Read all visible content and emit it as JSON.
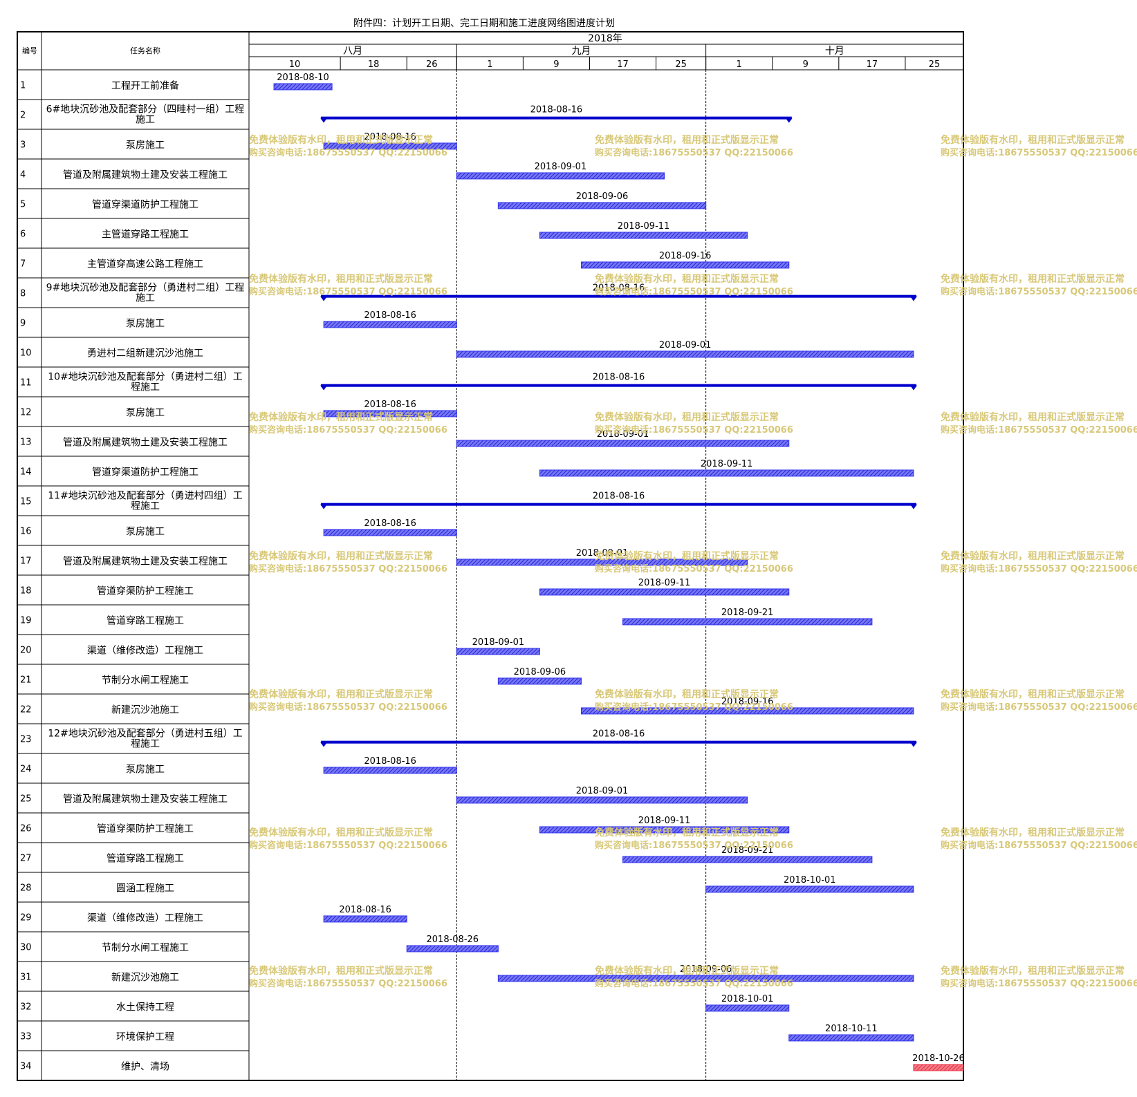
{
  "page": {
    "title": "附件四：计划开工日期、完工日期和施工进度网络图进度计划",
    "col_id": "编号",
    "col_name": "任务名称",
    "year": "2018年",
    "months": [
      {
        "label": "八月",
        "start": "2018-08-07"
      },
      {
        "label": "九月",
        "start": "2018-09-01"
      },
      {
        "label": "十月",
        "start": "2018-10-01"
      }
    ],
    "day_ticks": [
      {
        "label": "10",
        "date": "2018-08-10"
      },
      {
        "label": "18",
        "date": "2018-08-18"
      },
      {
        "label": "26",
        "date": "2018-08-26"
      },
      {
        "label": "1",
        "date": "2018-09-01"
      },
      {
        "label": "9",
        "date": "2018-09-09"
      },
      {
        "label": "17",
        "date": "2018-09-17"
      },
      {
        "label": "25",
        "date": "2018-09-25"
      },
      {
        "label": "1",
        "date": "2018-10-01"
      },
      {
        "label": "9",
        "date": "2018-10-09"
      },
      {
        "label": "17",
        "date": "2018-10-17"
      },
      {
        "label": "25",
        "date": "2018-10-25"
      }
    ],
    "watermark": [
      "免费体验版有水印，租用和正式版显示正常",
      "购买咨询电话:18675550537 QQ:22150066"
    ]
  },
  "chart_data": {
    "type": "gantt",
    "x_range": [
      "2018-08-07",
      "2018-10-31"
    ],
    "colors": {
      "bar": "#3333ee",
      "summary": "#0000cc",
      "last_bar": "#ee3344"
    },
    "tasks": [
      {
        "id": "1",
        "name": "工程开工前准备",
        "start": "2018-08-10",
        "end": "2018-08-16",
        "type": "task"
      },
      {
        "id": "2",
        "name": "6#地块沉砂池及配套部分（四畦村一组）工程施工",
        "start": "2018-08-16",
        "end": "2018-10-10",
        "type": "summary"
      },
      {
        "id": "3",
        "name": "泵房施工",
        "start": "2018-08-16",
        "end": "2018-08-31",
        "type": "task"
      },
      {
        "id": "4",
        "name": "管道及附属建筑物土建及安装工程施工",
        "start": "2018-09-01",
        "end": "2018-09-25",
        "type": "task"
      },
      {
        "id": "5",
        "name": "管道穿渠道防护工程施工",
        "start": "2018-09-06",
        "end": "2018-09-30",
        "type": "task"
      },
      {
        "id": "6",
        "name": "主管道穿路工程施工",
        "start": "2018-09-11",
        "end": "2018-10-05",
        "type": "task"
      },
      {
        "id": "7",
        "name": "主管道穿高速公路工程施工",
        "start": "2018-09-16",
        "end": "2018-10-10",
        "type": "task"
      },
      {
        "id": "8",
        "name": "9#地块沉砂池及配套部分（勇进村二组）工程施工",
        "start": "2018-08-16",
        "end": "2018-10-25",
        "type": "summary"
      },
      {
        "id": "9",
        "name": "泵房施工",
        "start": "2018-08-16",
        "end": "2018-08-31",
        "type": "task"
      },
      {
        "id": "10",
        "name": "勇进村二组新建沉沙池施工",
        "start": "2018-09-01",
        "end": "2018-10-25",
        "type": "task"
      },
      {
        "id": "11",
        "name": "10#地块沉砂池及配套部分（勇进村二组）工程施工",
        "start": "2018-08-16",
        "end": "2018-10-25",
        "type": "summary"
      },
      {
        "id": "12",
        "name": "泵房施工",
        "start": "2018-08-16",
        "end": "2018-08-31",
        "type": "task"
      },
      {
        "id": "13",
        "name": "管道及附属建筑物土建及安装工程施工",
        "start": "2018-09-01",
        "end": "2018-10-10",
        "type": "task"
      },
      {
        "id": "14",
        "name": "管道穿渠道防护工程施工",
        "start": "2018-09-11",
        "end": "2018-10-25",
        "type": "task"
      },
      {
        "id": "15",
        "name": "11#地块沉砂池及配套部分（勇进村四组）工程施工",
        "start": "2018-08-16",
        "end": "2018-10-25",
        "type": "summary"
      },
      {
        "id": "16",
        "name": "泵房施工",
        "start": "2018-08-16",
        "end": "2018-08-31",
        "type": "task"
      },
      {
        "id": "17",
        "name": "管道及附属建筑物土建及安装工程施工",
        "start": "2018-09-01",
        "end": "2018-10-05",
        "type": "task"
      },
      {
        "id": "18",
        "name": "管道穿渠防护工程施工",
        "start": "2018-09-11",
        "end": "2018-10-10",
        "type": "task"
      },
      {
        "id": "19",
        "name": "管道穿路工程施工",
        "start": "2018-09-21",
        "end": "2018-10-20",
        "type": "task"
      },
      {
        "id": "20",
        "name": "渠道（维修改造）工程施工",
        "start": "2018-09-01",
        "end": "2018-09-10",
        "type": "task"
      },
      {
        "id": "21",
        "name": "节制分水闸工程施工",
        "start": "2018-09-06",
        "end": "2018-09-15",
        "type": "task"
      },
      {
        "id": "22",
        "name": "新建沉沙池施工",
        "start": "2018-09-16",
        "end": "2018-10-25",
        "type": "task"
      },
      {
        "id": "23",
        "name": "12#地块沉砂池及配套部分（勇进村五组）工程施工",
        "start": "2018-08-16",
        "end": "2018-10-25",
        "type": "summary"
      },
      {
        "id": "24",
        "name": "泵房施工",
        "start": "2018-08-16",
        "end": "2018-08-31",
        "type": "task"
      },
      {
        "id": "25",
        "name": "管道及附属建筑物土建及安装工程施工",
        "start": "2018-09-01",
        "end": "2018-10-05",
        "type": "task"
      },
      {
        "id": "26",
        "name": "管道穿渠防护工程施工",
        "start": "2018-09-11",
        "end": "2018-10-10",
        "type": "task"
      },
      {
        "id": "27",
        "name": "管道穿路工程施工",
        "start": "2018-09-21",
        "end": "2018-10-20",
        "type": "task"
      },
      {
        "id": "28",
        "name": "圆涵工程施工",
        "start": "2018-10-01",
        "end": "2018-10-25",
        "type": "task"
      },
      {
        "id": "29",
        "name": "渠道（维修改造）工程施工",
        "start": "2018-08-16",
        "end": "2018-08-25",
        "type": "task"
      },
      {
        "id": "30",
        "name": "节制分水闸工程施工",
        "start": "2018-08-26",
        "end": "2018-09-05",
        "type": "task"
      },
      {
        "id": "31",
        "name": "新建沉沙池施工",
        "start": "2018-09-06",
        "end": "2018-10-25",
        "type": "task"
      },
      {
        "id": "32",
        "name": "水土保持工程",
        "start": "2018-10-01",
        "end": "2018-10-10",
        "type": "task"
      },
      {
        "id": "33",
        "name": "环境保护工程",
        "start": "2018-10-11",
        "end": "2018-10-25",
        "type": "task"
      },
      {
        "id": "34",
        "name": "维护、清场",
        "start": "2018-10-26",
        "end": "2018-10-31",
        "type": "task"
      }
    ]
  }
}
